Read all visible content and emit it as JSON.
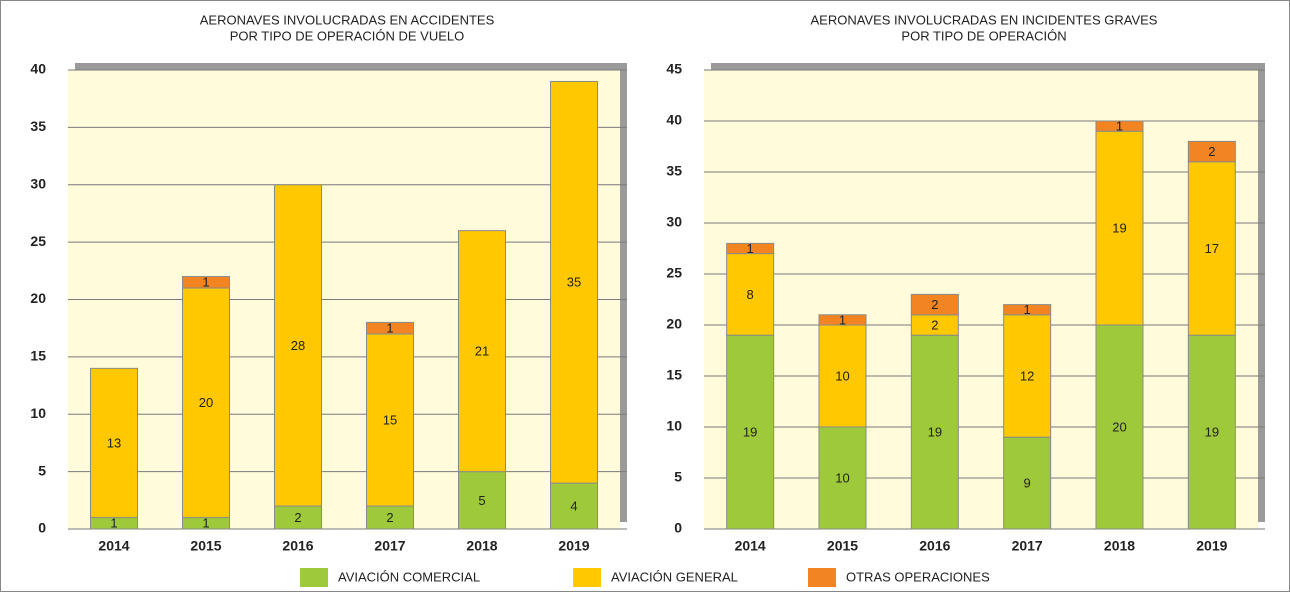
{
  "chart_data": [
    {
      "type": "stacked_bar",
      "title": [
        "AERONAVES INVOLUCRADAS EN ACCIDENTES",
        "POR TIPO DE OPERACIÓN DE VUELO"
      ],
      "categories": [
        "2014",
        "2015",
        "2016",
        "2017",
        "2018",
        "2019"
      ],
      "series": [
        {
          "name": "AVIACIÓN COMERCIAL",
          "color": "#9dc93b",
          "values": [
            1,
            1,
            2,
            2,
            5,
            4
          ]
        },
        {
          "name": "AVIACIÓN GENERAL",
          "color": "#ffc800",
          "values": [
            13,
            20,
            28,
            15,
            21,
            35
          ]
        },
        {
          "name": "OTRAS OPERACIONES",
          "color": "#f28522",
          "values": [
            0,
            1,
            0,
            1,
            0,
            0
          ]
        }
      ],
      "ylim": [
        0,
        40
      ],
      "yticks": [
        0,
        5,
        10,
        15,
        20,
        25,
        30,
        35,
        40
      ],
      "grid": true
    },
    {
      "type": "stacked_bar",
      "title": [
        "AERONAVES INVOLUCRADAS EN INCIDENTES GRAVES",
        "POR TIPO DE OPERACIÓN"
      ],
      "categories": [
        "2014",
        "2015",
        "2016",
        "2017",
        "2018",
        "2019"
      ],
      "series": [
        {
          "name": "AVIACIÓN COMERCIAL",
          "color": "#9dc93b",
          "values": [
            19,
            10,
            19,
            9,
            20,
            19
          ]
        },
        {
          "name": "AVIACIÓN GENERAL",
          "color": "#ffc800",
          "values": [
            8,
            10,
            2,
            12,
            19,
            17
          ]
        },
        {
          "name": "OTRAS OPERACIONES",
          "color": "#f28522",
          "values": [
            1,
            1,
            2,
            1,
            1,
            2
          ]
        }
      ],
      "ylim": [
        0,
        45
      ],
      "yticks": [
        0,
        5,
        10,
        15,
        20,
        25,
        30,
        35,
        40,
        45
      ],
      "grid": true
    }
  ]
}
